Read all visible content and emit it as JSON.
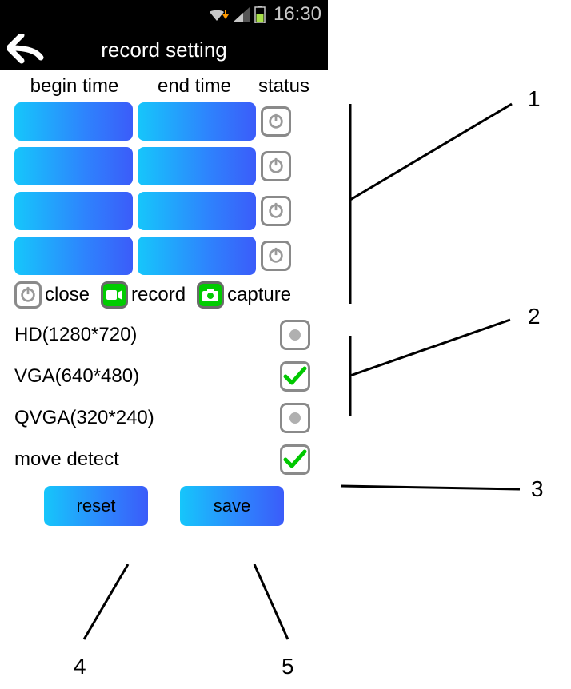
{
  "status_bar": {
    "time": "16:30"
  },
  "title_bar": {
    "title": "record setting"
  },
  "table": {
    "headers": {
      "begin": "begin time",
      "end": "end time",
      "status": "status"
    },
    "rows": [
      {
        "begin": "",
        "end": "",
        "status": "close"
      },
      {
        "begin": "",
        "end": "",
        "status": "close"
      },
      {
        "begin": "",
        "end": "",
        "status": "close"
      },
      {
        "begin": "",
        "end": "",
        "status": "close"
      }
    ]
  },
  "legend": {
    "close": "close",
    "record": "record",
    "capture": "capture"
  },
  "resolutions": [
    {
      "label": "HD(1280*720)",
      "selected": false
    },
    {
      "label": "VGA(640*480)",
      "selected": true
    },
    {
      "label": "QVGA(320*240)",
      "selected": false
    }
  ],
  "move_detect": {
    "label": "move detect",
    "enabled": true
  },
  "buttons": {
    "reset": "reset",
    "save": "save"
  },
  "colors": {
    "gradient_start": "#16c6fb",
    "gradient_mid": "#2e83fd",
    "gradient_end": "#3b5cf9",
    "check_green": "#00c800",
    "box_border": "#8a8a8a",
    "bg_black": "#000000",
    "text_light": "#c8c8c8"
  },
  "annotations": {
    "n1": "1",
    "n2": "2",
    "n3": "3",
    "n4": "4",
    "n5": "5"
  }
}
